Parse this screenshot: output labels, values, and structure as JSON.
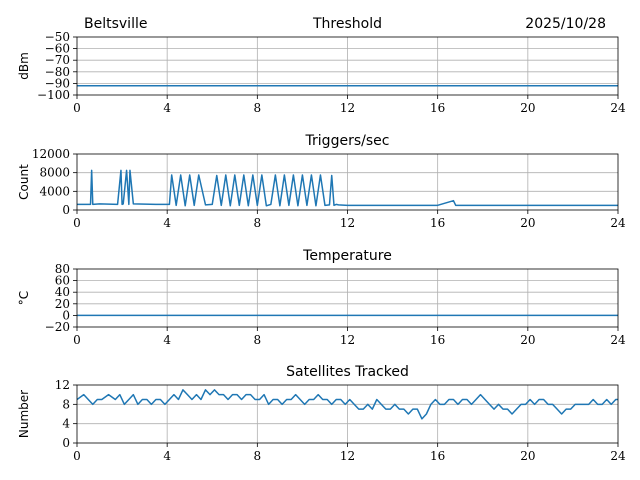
{
  "header": {
    "location": "Beltsville",
    "date": "2025/10/28"
  },
  "style": {
    "series_color": "#1f77b4",
    "grid_color": "#b0b0b0"
  },
  "chart_data": [
    {
      "id": "threshold",
      "type": "line",
      "title": "Threshold",
      "xlabel": "",
      "ylabel": "dBm",
      "xlim": [
        0,
        24
      ],
      "ylim": [
        -100,
        -50
      ],
      "xticks": [
        0,
        4,
        8,
        12,
        16,
        20,
        24
      ],
      "yticks": [
        -50,
        -60,
        -70,
        -80,
        -90,
        -100
      ],
      "ytick_labels": [
        "−50",
        "−60",
        "−70",
        "−80",
        "−90",
        "−100"
      ],
      "grid": true,
      "series": [
        {
          "name": "threshold",
          "x": [
            0,
            1,
            2,
            3,
            4,
            5,
            6,
            7,
            8,
            9,
            10,
            11,
            12,
            13,
            14,
            15,
            16,
            17,
            18,
            19,
            20,
            21,
            22,
            23,
            24
          ],
          "values": [
            -92,
            -92,
            -92,
            -92,
            -92,
            -92,
            -92,
            -92,
            -92,
            -92,
            -92,
            -92,
            -92,
            -92,
            -92,
            -92,
            -92,
            -92,
            -92,
            -92,
            -92,
            -92,
            -92,
            -92,
            -92
          ]
        }
      ]
    },
    {
      "id": "triggers",
      "type": "line",
      "title": "Triggers/sec",
      "xlabel": "",
      "ylabel": "Count",
      "xlim": [
        0,
        24
      ],
      "ylim": [
        0,
        12000
      ],
      "xticks": [
        0,
        4,
        8,
        12,
        16,
        20,
        24
      ],
      "yticks": [
        0,
        4000,
        8000,
        12000
      ],
      "ytick_labels": [
        "0",
        "4000",
        "8000",
        "12000"
      ],
      "grid": true,
      "series": [
        {
          "name": "triggers",
          "x": [
            0,
            0.6,
            0.65,
            0.7,
            1.0,
            1.8,
            1.95,
            2.0,
            2.05,
            2.2,
            2.3,
            2.35,
            2.5,
            3.5,
            4.1,
            4.2,
            4.4,
            4.6,
            4.8,
            5.0,
            5.2,
            5.4,
            5.7,
            6.0,
            6.2,
            6.4,
            6.6,
            6.8,
            7.0,
            7.2,
            7.4,
            7.6,
            7.8,
            8.0,
            8.2,
            8.4,
            8.6,
            8.8,
            9.0,
            9.2,
            9.4,
            9.6,
            9.8,
            10.0,
            10.2,
            10.4,
            10.6,
            10.8,
            11.0,
            11.2,
            11.3,
            11.4,
            11.5,
            11.6,
            12.0,
            14.0,
            16.0,
            16.7,
            16.8,
            18.0,
            20.0,
            22.0,
            24.0
          ],
          "values": [
            1200,
            1200,
            8500,
            1200,
            1300,
            1200,
            8500,
            1200,
            1300,
            8500,
            1200,
            8500,
            1300,
            1200,
            1200,
            7500,
            1000,
            7500,
            900,
            7500,
            1000,
            7500,
            1100,
            1200,
            7400,
            1000,
            7500,
            900,
            7500,
            1000,
            7500,
            900,
            7500,
            1000,
            7500,
            900,
            1200,
            7500,
            900,
            7500,
            1000,
            7500,
            900,
            7500,
            1000,
            7500,
            900,
            7500,
            1000,
            1100,
            7400,
            1000,
            1200,
            1100,
            1000,
            1000,
            1000,
            2000,
            1000,
            1000,
            1000,
            1000,
            1000
          ]
        }
      ]
    },
    {
      "id": "temperature",
      "type": "line",
      "title": "Temperature",
      "xlabel": "",
      "ylabel": "°C",
      "xlim": [
        0,
        24
      ],
      "ylim": [
        -20,
        80
      ],
      "xticks": [
        0,
        4,
        8,
        12,
        16,
        20,
        24
      ],
      "yticks": [
        -20,
        0,
        20,
        40,
        60,
        80
      ],
      "ytick_labels": [
        "−20",
        "0",
        "20",
        "40",
        "60",
        "80"
      ],
      "grid": true,
      "series": [
        {
          "name": "temperature",
          "x": [
            0,
            4,
            8,
            12,
            16,
            20,
            24
          ],
          "values": [
            0,
            0,
            0,
            0,
            0,
            0,
            0
          ]
        }
      ]
    },
    {
      "id": "satellites",
      "type": "line",
      "title": "Satellites Tracked",
      "xlabel": "",
      "ylabel": "Number",
      "xlim": [
        0,
        24
      ],
      "ylim": [
        0,
        12
      ],
      "xticks": [
        0,
        4,
        8,
        12,
        16,
        20,
        24
      ],
      "yticks": [
        0,
        4,
        8,
        12
      ],
      "ytick_labels": [
        "0",
        "4",
        "8",
        "12"
      ],
      "grid": true,
      "series": [
        {
          "name": "satellites",
          "x": [
            0,
            0.3,
            0.5,
            0.7,
            0.9,
            1.1,
            1.4,
            1.7,
            1.9,
            2.1,
            2.3,
            2.5,
            2.7,
            2.9,
            3.1,
            3.3,
            3.5,
            3.7,
            3.9,
            4.1,
            4.3,
            4.5,
            4.7,
            4.9,
            5.1,
            5.3,
            5.5,
            5.7,
            5.9,
            6.1,
            6.3,
            6.5,
            6.7,
            6.9,
            7.1,
            7.3,
            7.5,
            7.7,
            7.9,
            8.1,
            8.3,
            8.5,
            8.7,
            8.9,
            9.1,
            9.3,
            9.5,
            9.7,
            9.9,
            10.1,
            10.3,
            10.5,
            10.7,
            10.9,
            11.1,
            11.3,
            11.5,
            11.7,
            11.9,
            12.1,
            12.3,
            12.5,
            12.7,
            12.9,
            13.1,
            13.3,
            13.5,
            13.7,
            13.9,
            14.1,
            14.3,
            14.5,
            14.7,
            14.9,
            15.1,
            15.3,
            15.5,
            15.7,
            15.9,
            16.1,
            16.3,
            16.5,
            16.7,
            16.9,
            17.1,
            17.3,
            17.5,
            17.7,
            17.9,
            18.1,
            18.3,
            18.5,
            18.7,
            18.9,
            19.1,
            19.3,
            19.5,
            19.7,
            19.9,
            20.1,
            20.3,
            20.5,
            20.7,
            20.9,
            21.1,
            21.3,
            21.5,
            21.7,
            21.9,
            22.1,
            22.3,
            22.5,
            22.7,
            22.9,
            23.1,
            23.3,
            23.5,
            23.7,
            23.9,
            24.0
          ],
          "values": [
            9,
            10,
            9,
            8,
            9,
            9,
            10,
            9,
            10,
            8,
            9,
            10,
            8,
            9,
            9,
            8,
            9,
            9,
            8,
            9,
            10,
            9,
            11,
            10,
            9,
            10,
            9,
            11,
            10,
            11,
            10,
            10,
            9,
            10,
            10,
            9,
            10,
            10,
            9,
            9,
            10,
            8,
            9,
            9,
            8,
            9,
            9,
            10,
            9,
            8,
            9,
            9,
            10,
            9,
            9,
            8,
            9,
            9,
            8,
            9,
            8,
            7,
            7,
            8,
            7,
            9,
            8,
            7,
            7,
            8,
            7,
            7,
            6,
            7,
            7,
            5,
            6,
            8,
            9,
            8,
            8,
            9,
            9,
            8,
            9,
            9,
            8,
            9,
            10,
            9,
            8,
            7,
            8,
            7,
            7,
            6,
            7,
            8,
            8,
            9,
            8,
            9,
            9,
            8,
            8,
            7,
            6,
            7,
            7,
            8,
            8,
            8,
            8,
            9,
            8,
            8,
            9,
            8,
            9,
            9
          ]
        }
      ]
    }
  ]
}
